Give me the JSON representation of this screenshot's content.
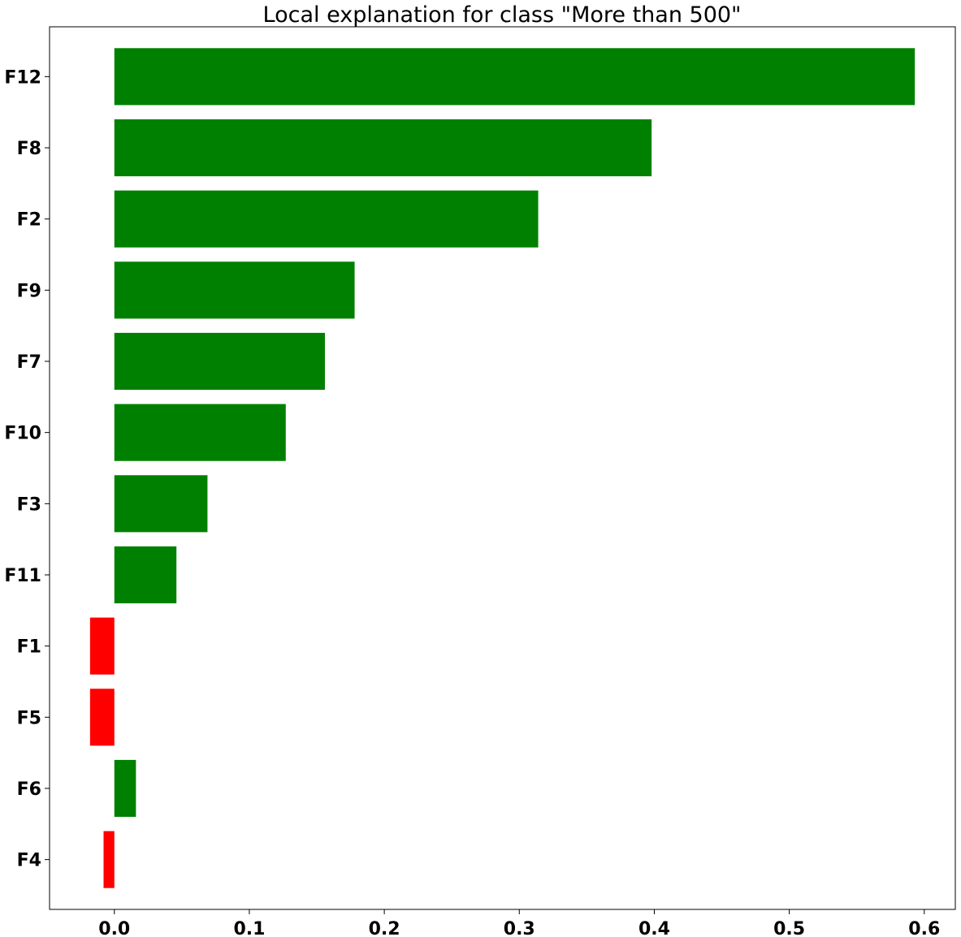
{
  "chart_data": {
    "type": "bar",
    "orientation": "horizontal",
    "title": "Local explanation for class \"More than 500\"",
    "xlabel": "",
    "ylabel": "",
    "categories": [
      "F4",
      "F6",
      "F5",
      "F1",
      "F11",
      "F3",
      "F10",
      "F7",
      "F9",
      "F2",
      "F8",
      "F12"
    ],
    "values": [
      -0.008,
      0.016,
      -0.018,
      -0.018,
      0.046,
      0.069,
      0.127,
      0.156,
      0.178,
      0.314,
      0.398,
      0.593
    ],
    "xlim": [
      -0.048,
      0.623
    ],
    "xticks": [
      0.0,
      0.1,
      0.2,
      0.3,
      0.4,
      0.5,
      0.6
    ],
    "xtick_labels": [
      "0.0",
      "0.1",
      "0.2",
      "0.3",
      "0.4",
      "0.5",
      "0.6"
    ],
    "grid": false,
    "legend": "none",
    "colors": {
      "positive": "#008000",
      "negative": "#ff0000"
    }
  }
}
